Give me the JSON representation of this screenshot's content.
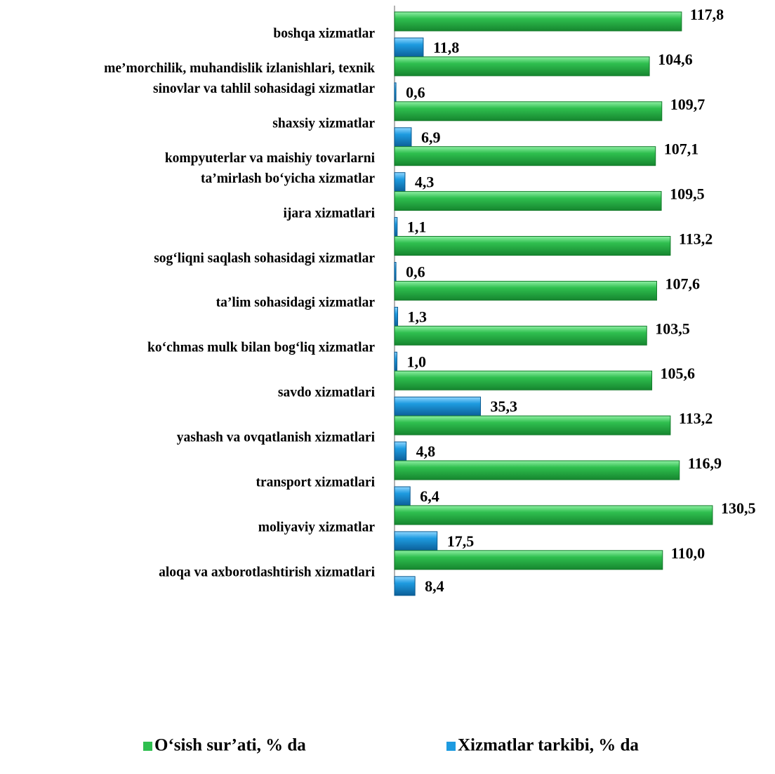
{
  "chart_data": {
    "type": "bar",
    "orientation": "horizontal",
    "categories": [
      "boshqa xizmatlar",
      "me’morchilik, muhandislik izlanishlari, texnik\nsinovlar va tahlil sohasidagi xizmatlar",
      "shaxsiy xizmatlar",
      "kompyuterlar va maishiy tovarlarni\nta’mirlash bo‘yicha xizmatlar",
      "ijara xizmatlari",
      "sog‘liqni saqlash sohasidagi xizmatlar",
      "ta’lim sohasidagi xizmatlar",
      "ko‘chmas mulk bilan bog‘liq xizmatlar",
      "savdo xizmatlari",
      "yashash va ovqatlanish xizmatlari",
      "transport xizmatlari",
      "moliyaviy xizmatlar",
      "aloqa va axborotlashtirish xizmatlari"
    ],
    "series": [
      {
        "name": "O‘sish sur’ati, % da",
        "color": "#2fbf4f",
        "values": [
          117.8,
          104.6,
          109.7,
          107.1,
          109.5,
          113.2,
          107.6,
          103.5,
          105.6,
          113.2,
          116.9,
          130.5,
          110.0
        ],
        "value_labels": [
          "117,8",
          "104,6",
          "109,7",
          "107,1",
          "109,5",
          "113,2",
          "107,6",
          "103,5",
          "105,6",
          "113,2",
          "116,9",
          "130,5",
          "110,0"
        ]
      },
      {
        "name": "Xizmatlar tarkibi, % da",
        "color": "#1e9be0",
        "values": [
          11.8,
          0.6,
          6.9,
          4.3,
          1.1,
          0.6,
          1.3,
          1.0,
          35.3,
          4.8,
          6.4,
          17.5,
          8.4
        ],
        "value_labels": [
          "11,8",
          "0,6",
          "6,9",
          "4,3",
          "1,1",
          "0,6",
          "1,3",
          "1,0",
          "35,3",
          "4,8",
          "6,4",
          "17,5",
          "8,4"
        ]
      }
    ],
    "xlim": [
      0,
      155
    ],
    "legend": "bottom"
  }
}
